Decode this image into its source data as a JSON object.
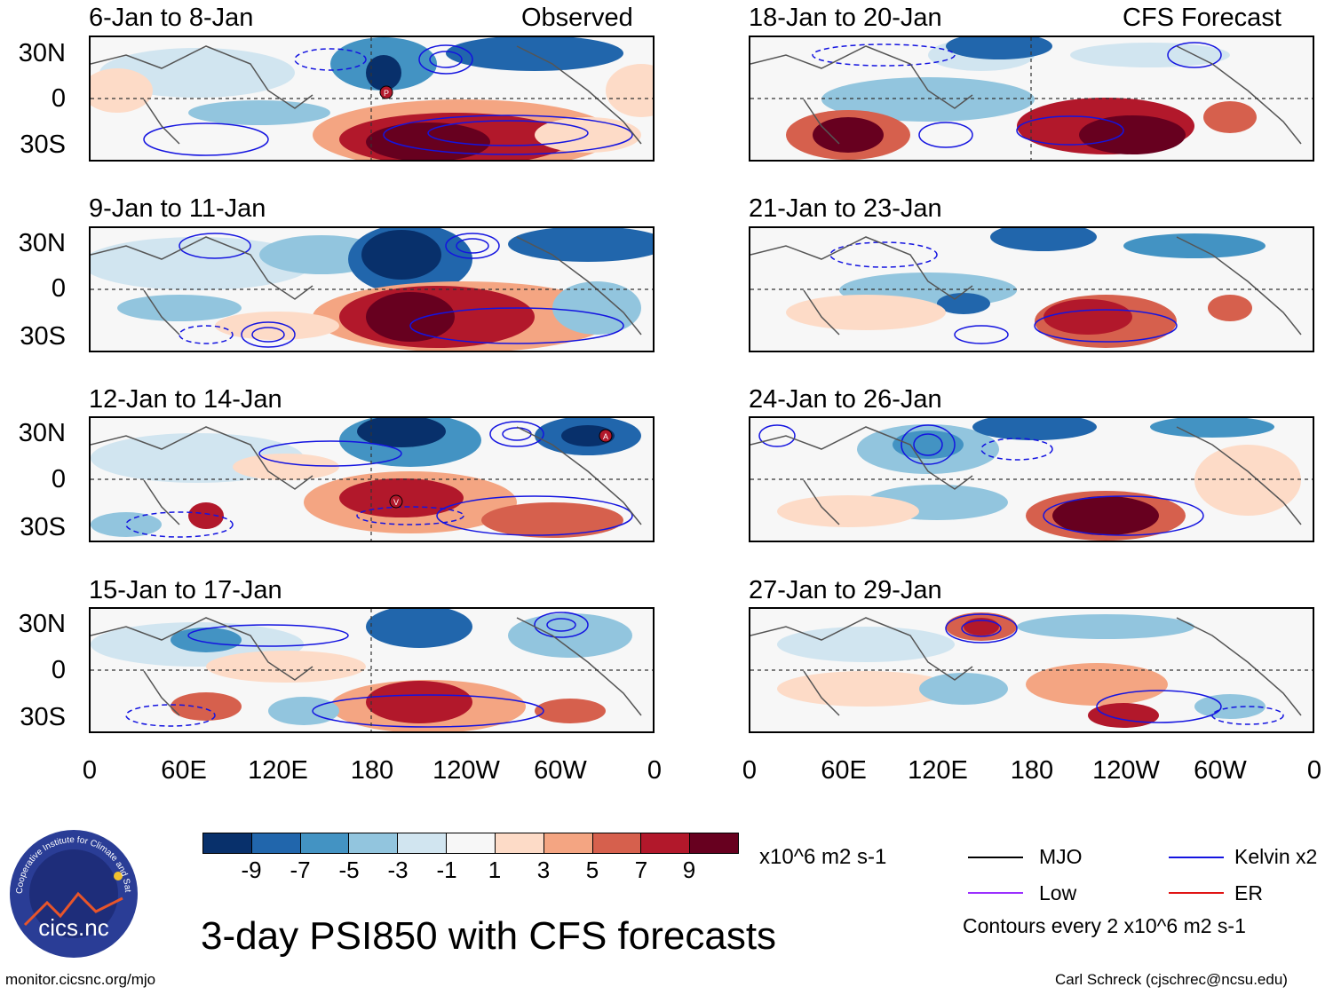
{
  "panels_left": [
    {
      "title": "6-Jan to 8-Jan",
      "tag": "Observed"
    },
    {
      "title": "9-Jan to 11-Jan",
      "tag": ""
    },
    {
      "title": "12-Jan to 14-Jan",
      "tag": ""
    },
    {
      "title": "15-Jan to 17-Jan",
      "tag": ""
    }
  ],
  "panels_right": [
    {
      "title": "18-Jan to 20-Jan",
      "tag": "CFS Forecast"
    },
    {
      "title": "21-Jan to 23-Jan",
      "tag": ""
    },
    {
      "title": "24-Jan to 26-Jan",
      "tag": ""
    },
    {
      "title": "27-Jan to 29-Jan",
      "tag": ""
    }
  ],
  "lat_labels": [
    "30N",
    "0",
    "30S"
  ],
  "lon_labels": [
    "0",
    "60E",
    "120E",
    "180",
    "120W",
    "60W",
    "0"
  ],
  "markers": {
    "p": "P",
    "v": "V",
    "a": "A"
  },
  "colorbar": {
    "labels": [
      "-9",
      "-7",
      "-5",
      "-3",
      "-1",
      "1",
      "3",
      "5",
      "7",
      "9"
    ],
    "colors": [
      "#08306b",
      "#2166ac",
      "#4393c3",
      "#92c5de",
      "#d1e5f0",
      "#f7f7f7",
      "#fddbc7",
      "#f4a582",
      "#d6604d",
      "#b2182b",
      "#67001f"
    ],
    "units": "x10^6 m2 s-1"
  },
  "legend": {
    "mjo": {
      "label": "MJO",
      "color": "#000000"
    },
    "kelvin": {
      "label": "Kelvin x2",
      "color": "#1414e0"
    },
    "low": {
      "label": "Low",
      "color": "#9b30ff"
    },
    "er": {
      "label": "ER",
      "color": "#e01414"
    },
    "note": "Contours every 2 x10^6 m2 s-1"
  },
  "logo_text": "cics.nc",
  "logo_ring": "Cooperative Institute for Climate and Satellites",
  "main_title": "3-day PSI850 with CFS forecasts",
  "footer_left": "monitor.cicsnc.org/mjo",
  "footer_right": "Carl Schreck (cjschrec@ncsu.edu)"
}
